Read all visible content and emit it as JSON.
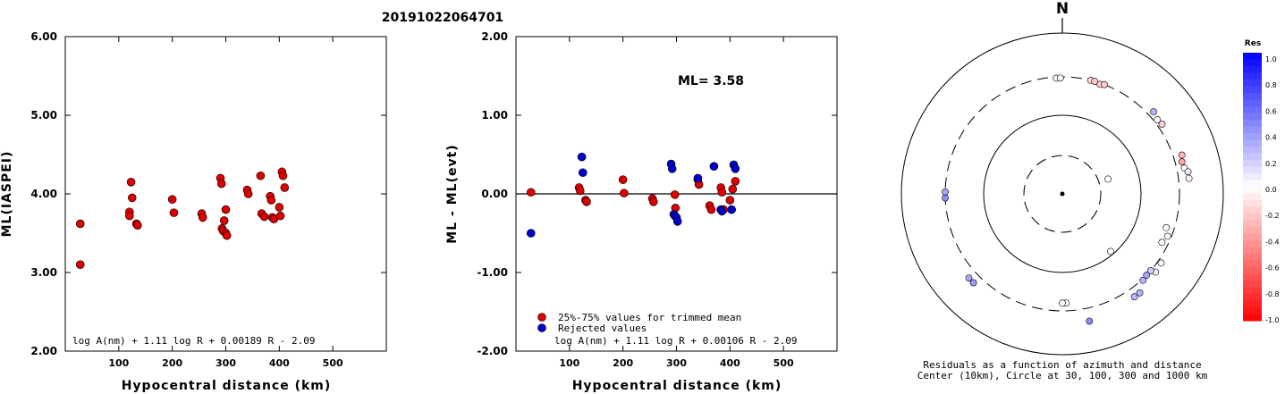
{
  "figure_title": "20191022064701",
  "chart_data": [
    {
      "type": "scatter",
      "xlabel": "Hypocentral distance (km)",
      "ylabel": "ML(IASPEI)",
      "xlim": [
        0,
        600
      ],
      "ylim": [
        2.0,
        6.0
      ],
      "x_ticks": [
        100,
        200,
        300,
        400,
        500
      ],
      "y_ticks": [
        2.0,
        3.0,
        4.0,
        5.0,
        6.0
      ],
      "y_tick_labels": [
        "2.00",
        "3.00",
        "4.00",
        "5.00",
        "6.00"
      ],
      "formula": "log A(nm) + 1.11 log R + 0.00189 R - 2.09",
      "grid": false,
      "series": [
        {
          "color": "#dd0000",
          "x": [
            28,
            28,
            120,
            120,
            123,
            125,
            133,
            135,
            200,
            203,
            255,
            257,
            290,
            292,
            293,
            295,
            297,
            300,
            300,
            302,
            340,
            342,
            365,
            367,
            372,
            383,
            385,
            387,
            390,
            400,
            402,
            405,
            407,
            410
          ],
          "y": [
            3.62,
            3.1,
            3.77,
            3.72,
            4.15,
            3.95,
            3.62,
            3.6,
            3.93,
            3.76,
            3.75,
            3.7,
            4.2,
            4.13,
            3.56,
            3.53,
            3.66,
            3.8,
            3.5,
            3.47,
            4.05,
            4.0,
            4.23,
            3.75,
            3.71,
            3.97,
            3.92,
            3.7,
            3.68,
            3.83,
            3.72,
            4.28,
            4.23,
            4.08
          ]
        }
      ]
    },
    {
      "type": "scatter",
      "xlabel": "Hypocentral distance (km)",
      "ylabel": "ML - ML(evt)",
      "xlim": [
        0,
        600
      ],
      "ylim": [
        -2.0,
        2.0
      ],
      "x_ticks": [
        100,
        200,
        300,
        400,
        500
      ],
      "y_ticks": [
        -2.0,
        -1.0,
        0.0,
        1.0,
        2.0
      ],
      "y_tick_labels": [
        "-2.00",
        "-1.00",
        "0.00",
        "1.00",
        "2.00"
      ],
      "annotation": "ML= 3.58",
      "reference_line": 0.0,
      "formula": "log A(nm) + 1.11 log R + 0.00106 R - 2.09",
      "legend_position": "bottom-left",
      "grid": false,
      "series": [
        {
          "name": "25%-75% values for trimmed mean",
          "color": "#dd0000",
          "x": [
            28,
            118,
            120,
            130,
            132,
            200,
            202,
            255,
            257,
            297,
            298,
            340,
            342,
            362,
            365,
            383,
            385,
            388,
            400,
            405,
            410
          ],
          "y": [
            0.02,
            0.08,
            0.04,
            -0.08,
            -0.1,
            0.18,
            0.01,
            -0.06,
            -0.1,
            -0.01,
            -0.18,
            0.18,
            0.12,
            -0.15,
            -0.2,
            0.08,
            0.02,
            -0.2,
            -0.08,
            0.06,
            0.16
          ]
        },
        {
          "name": "Rejected values",
          "color": "#0000cc",
          "x": [
            28,
            123,
            125,
            290,
            292,
            295,
            297,
            300,
            302,
            340,
            370,
            383,
            385,
            403,
            407,
            410
          ],
          "y": [
            -0.5,
            0.47,
            0.27,
            0.38,
            0.32,
            -0.26,
            -0.28,
            -0.3,
            -0.35,
            0.2,
            0.35,
            -0.2,
            -0.22,
            -0.2,
            0.37,
            0.32
          ]
        }
      ]
    },
    {
      "type": "scatter",
      "title": "N",
      "caption_1": "Residuals as a function of azimuth and distance",
      "caption_2": "Center (10km), Circle at 30, 100, 300 and 1000 km",
      "colorbar_title": "Res",
      "colorbar_ticks": [
        "1.0",
        "0.8",
        "0.6",
        "0.4",
        "0.2",
        "0.0",
        "-0.2",
        "-0.4",
        "-0.6",
        "-0.8",
        "-1.0"
      ],
      "colorbar_range": [
        -1.0,
        1.0
      ],
      "ring_distances_km": [
        10,
        30,
        100,
        300,
        1000
      ],
      "stations": [
        {
          "azimuth_deg": -3,
          "distance_km": 290,
          "residual": 0.02
        },
        {
          "azimuth_deg": -1,
          "distance_km": 290,
          "residual": -0.02
        },
        {
          "azimuth_deg": 14,
          "distance_km": 300,
          "residual": -0.15
        },
        {
          "azimuth_deg": 16,
          "distance_km": 300,
          "residual": -0.22
        },
        {
          "azimuth_deg": 19,
          "distance_km": 290,
          "residual": -0.18
        },
        {
          "azimuth_deg": 21,
          "distance_km": 300,
          "residual": -0.2
        },
        {
          "azimuth_deg": 48,
          "distance_km": 350,
          "residual": 0.3
        },
        {
          "azimuth_deg": 52,
          "distance_km": 330,
          "residual": 0.02
        },
        {
          "azimuth_deg": 55,
          "distance_km": 340,
          "residual": -0.18
        },
        {
          "azimuth_deg": 72,
          "distance_km": 380,
          "residual": -0.28
        },
        {
          "azimuth_deg": 75,
          "distance_km": 360,
          "residual": -0.35
        },
        {
          "azimuth_deg": 78,
          "distance_km": 370,
          "residual": -0.02
        },
        {
          "azimuth_deg": 80,
          "distance_km": 400,
          "residual": 0.1
        },
        {
          "azimuth_deg": 83,
          "distance_km": 400,
          "residual": -0.05
        },
        {
          "azimuth_deg": 72,
          "distance_km": 40,
          "residual": 0.0
        },
        {
          "azimuth_deg": 108,
          "distance_km": 240,
          "residual": 0.0
        },
        {
          "azimuth_deg": 112,
          "distance_km": 270,
          "residual": 0.02
        },
        {
          "azimuth_deg": 116,
          "distance_km": 250,
          "residual": -0.02
        },
        {
          "azimuth_deg": 125,
          "distance_km": 330,
          "residual": 0.02
        },
        {
          "azimuth_deg": 130,
          "distance_km": 340,
          "residual": 0.05
        },
        {
          "azimuth_deg": 131,
          "distance_km": 300,
          "residual": 0.2
        },
        {
          "azimuth_deg": 134,
          "distance_km": 300,
          "residual": 0.35
        },
        {
          "azimuth_deg": 137,
          "distance_km": 310,
          "residual": 0.3
        },
        {
          "azimuth_deg": 142,
          "distance_km": 380,
          "residual": 0.3
        },
        {
          "azimuth_deg": 145,
          "distance_km": 380,
          "residual": 0.28
        },
        {
          "azimuth_deg": 168,
          "distance_km": 430,
          "residual": 0.45
        },
        {
          "azimuth_deg": 178,
          "distance_km": 240,
          "residual": 0.0
        },
        {
          "azimuth_deg": 180,
          "distance_km": 240,
          "residual": 0.02
        },
        {
          "azimuth_deg": 140,
          "distance_km": 90,
          "residual": 0.02
        },
        {
          "azimuth_deg": 225,
          "distance_km": 380,
          "residual": 0.4
        },
        {
          "azimuth_deg": 228,
          "distance_km": 380,
          "residual": 0.35
        },
        {
          "azimuth_deg": 268,
          "distance_km": 300,
          "residual": 0.45
        },
        {
          "azimuth_deg": 271,
          "distance_km": 300,
          "residual": 0.35
        }
      ]
    }
  ],
  "legend": {
    "item1": "25%-75% values for trimmed mean",
    "item2": "Rejected values"
  }
}
